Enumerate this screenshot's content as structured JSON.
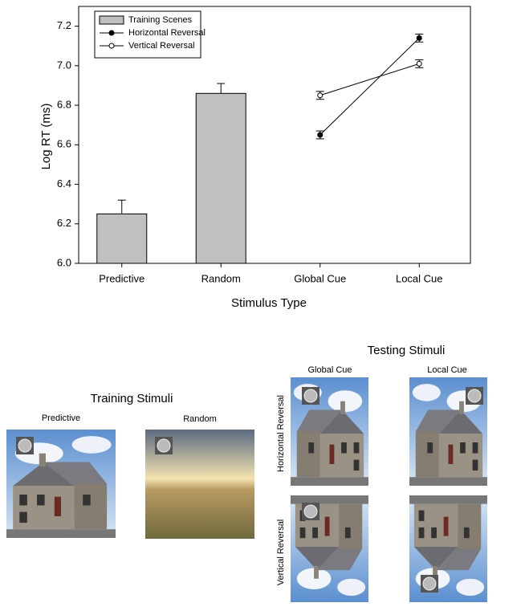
{
  "chart_data": {
    "type": "bar",
    "x_label": "Stimulus Type",
    "y_label": "Log RT (ms)",
    "categories": [
      "Predictive",
      "Random",
      "Global Cue",
      "Local Cue"
    ],
    "series": [
      {
        "name": "Training Scenes",
        "type": "bar",
        "color": "#c0c0c0",
        "values": [
          6.25,
          6.86,
          null,
          null
        ],
        "errors": [
          0.07,
          0.05,
          null,
          null
        ]
      },
      {
        "name": "Horizontal Reversal",
        "type": "line",
        "color": "#000000",
        "marker_fill": "#000000",
        "values": [
          null,
          null,
          6.65,
          7.14
        ],
        "errors": [
          null,
          null,
          0.02,
          0.02
        ]
      },
      {
        "name": "Vertical Reversal",
        "type": "line",
        "color": "#000000",
        "marker_fill": "#ffffff",
        "values": [
          null,
          null,
          6.85,
          7.01
        ],
        "errors": [
          null,
          null,
          0.02,
          0.02
        ]
      }
    ],
    "ylim": [
      6.0,
      7.3
    ],
    "yticks": [
      {
        "value": 6.0,
        "label": "6.0"
      },
      6.2,
      6.4,
      6.6,
      6.8,
      {
        "value": 7.0,
        "label": "7.0"
      },
      7.2
    ],
    "legend": "upper left",
    "grid": false
  },
  "training_stimuli": {
    "title": "Training Stimuli",
    "labels": [
      "Predictive",
      "Random"
    ]
  },
  "testing_stimuli": {
    "title": "Testing Stimuli",
    "columns": [
      "Global Cue",
      "Local Cue"
    ],
    "rows": [
      "Horizontal Reversal",
      "Vertical Reversal"
    ]
  }
}
